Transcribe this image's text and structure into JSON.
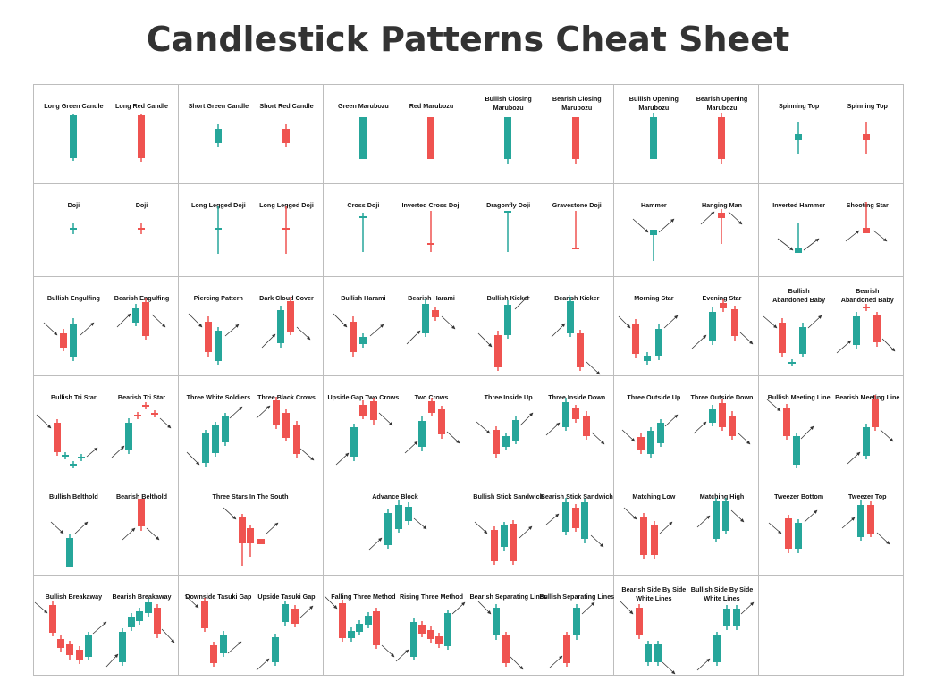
{
  "title": "Candlestick Patterns Cheat Sheet",
  "colors": {
    "bull": "#26a69a",
    "bear": "#ef5350",
    "grid": "#bdbdbd",
    "arrow": "#333333",
    "text": "#111111"
  },
  "rows": [
    [
      {
        "labels": [
          [
            "Long Green Candle"
          ],
          [
            "Long Red Candle"
          ]
        ]
      },
      {
        "labels": [
          [
            "Short Green Candle"
          ],
          [
            "Short Red Candle"
          ]
        ]
      },
      {
        "labels": [
          [
            "Green Marubozu"
          ],
          [
            "Red Marubozu"
          ]
        ]
      },
      {
        "labels": [
          [
            "Bullish Closing",
            "Marubozu"
          ],
          [
            "Bearish Closing",
            "Marubozu"
          ]
        ]
      },
      {
        "labels": [
          [
            "Bullish Opening",
            "Marubozu"
          ],
          [
            "Bearish Opening",
            "Marubozu"
          ]
        ]
      },
      {
        "labels": [
          [
            "Spinning Top"
          ],
          [
            "Spinning Top"
          ]
        ]
      }
    ],
    [
      {
        "labels": [
          [
            "Doji"
          ],
          [
            "Doji"
          ]
        ]
      },
      {
        "labels": [
          [
            "Long Legged Doji"
          ],
          [
            "Long Legged Doji"
          ]
        ]
      },
      {
        "labels": [
          [
            "Cross Doji"
          ],
          [
            "Inverted Cross Doji"
          ]
        ]
      },
      {
        "labels": [
          [
            "Dragonfly Doji"
          ],
          [
            "Gravestone Doji"
          ]
        ]
      },
      {
        "labels": [
          [
            "Hammer"
          ],
          [
            "Hanging Man"
          ]
        ]
      },
      {
        "labels": [
          [
            "Inverted Hammer"
          ],
          [
            "Shooting Star"
          ]
        ]
      }
    ],
    [
      {
        "labels": [
          [
            "Bullish Engulfing"
          ],
          [
            "Bearish Engulfing"
          ]
        ]
      },
      {
        "labels": [
          [
            "Piercing Pattern"
          ],
          [
            "Dark Cloud Cover"
          ]
        ]
      },
      {
        "labels": [
          [
            "Bullish Harami"
          ],
          [
            "Bearish Harami"
          ]
        ]
      },
      {
        "labels": [
          [
            "Bullish Kicker"
          ],
          [
            "Bearish Kicker"
          ]
        ]
      },
      {
        "labels": [
          [
            "Morning Star"
          ],
          [
            "Evening Star"
          ]
        ]
      },
      {
        "labels": [
          [
            "Bullish",
            "Abandoned Baby"
          ],
          [
            "Bearish",
            "Abandoned Baby"
          ]
        ]
      }
    ],
    [
      {
        "labels": [
          [
            "Bullish Tri Star"
          ],
          [
            "Bearish Tri Star"
          ]
        ]
      },
      {
        "labels": [
          [
            "Three White Soldiers"
          ],
          [
            "Three Black Crows"
          ]
        ]
      },
      {
        "labels": [
          [
            "Upside Gap Two Crows"
          ],
          [
            "Two Crows"
          ]
        ]
      },
      {
        "labels": [
          [
            "Three Inside Up"
          ],
          [
            "Three Inside Down"
          ]
        ]
      },
      {
        "labels": [
          [
            "Three Outside Up"
          ],
          [
            "Three Outside Down"
          ]
        ]
      },
      {
        "labels": [
          [
            "Bullish Meeting Line"
          ],
          [
            "Bearish Meeting Line"
          ]
        ]
      }
    ],
    [
      {
        "labels": [
          [
            "Bullish Belthold"
          ],
          [
            "Bearish Belthold"
          ]
        ]
      },
      {
        "labels": [
          [
            "Three Stars In The South"
          ]
        ]
      },
      {
        "labels": [
          [
            "Advance Block"
          ]
        ]
      },
      {
        "labels": [
          [
            "Bullish Stick Sandwich"
          ],
          [
            "Bearish Stick Sandwich"
          ]
        ]
      },
      {
        "labels": [
          [
            "Matching Low"
          ],
          [
            "Matching High"
          ]
        ]
      },
      {
        "labels": [
          [
            "Tweezer Bottom"
          ],
          [
            "Tweezer Top"
          ]
        ]
      }
    ],
    [
      {
        "labels": [
          [
            "Bullish Breakaway"
          ],
          [
            "Bearish Breakaway"
          ]
        ]
      },
      {
        "labels": [
          [
            "Downside Tasuki Gap"
          ],
          [
            "Upside Tasuki Gap"
          ]
        ]
      },
      {
        "labels": [
          [
            "Falling Three Method"
          ],
          [
            "Rising Three Method"
          ]
        ]
      },
      {
        "labels": [
          [
            "Bearish Separating Lines"
          ],
          [
            "Bullish Separating Lines"
          ]
        ]
      },
      {
        "labels": [
          [
            "Bearish Side By Side",
            "White Lines"
          ],
          [
            "Bullish Side By Side",
            "White Lines"
          ]
        ]
      },
      {
        "labels": []
      }
    ]
  ]
}
